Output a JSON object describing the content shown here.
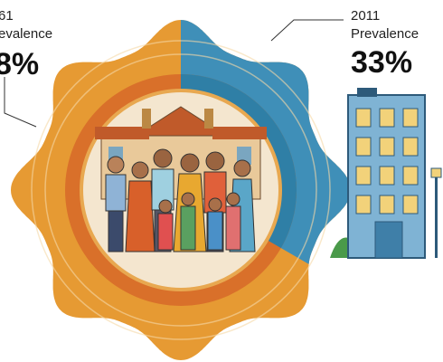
{
  "left_label": {
    "year": "61",
    "caption": "evalence",
    "value": "8%"
  },
  "right_label": {
    "year": "2011",
    "caption": "Prevalence",
    "value": "33%"
  }
}
